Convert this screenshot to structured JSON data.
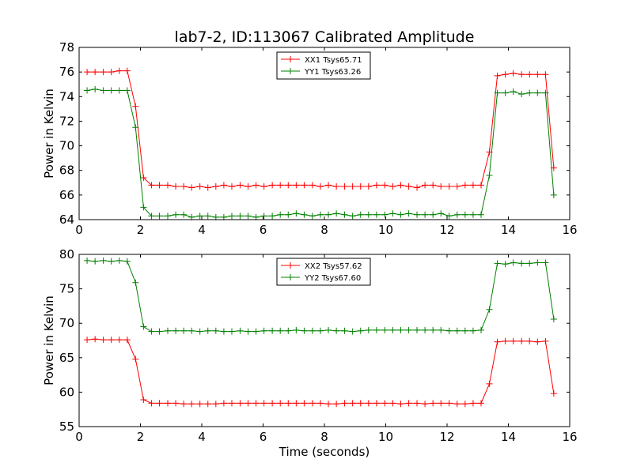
{
  "title": "lab7-2, ID:113067 Calibrated Amplitude",
  "colors": {
    "red": "#ff0000",
    "green": "#008000"
  },
  "chart_data": [
    {
      "type": "line",
      "ylabel": "Power in Kelvin",
      "xlabel": "",
      "xlim": [
        0,
        16
      ],
      "ylim": [
        64,
        78
      ],
      "xticks": [
        0,
        2,
        4,
        6,
        8,
        10,
        12,
        14,
        16
      ],
      "yticks": [
        64,
        66,
        68,
        70,
        72,
        74,
        76,
        78
      ],
      "legend_position": "top-center",
      "x": [
        0.26,
        0.52,
        0.79,
        1.05,
        1.31,
        1.57,
        1.84,
        2.1,
        2.36,
        2.62,
        2.89,
        3.15,
        3.41,
        3.67,
        3.94,
        4.2,
        4.46,
        4.72,
        4.98,
        5.25,
        5.51,
        5.77,
        6.03,
        6.3,
        6.56,
        6.82,
        7.08,
        7.34,
        7.61,
        7.87,
        8.13,
        8.39,
        8.66,
        8.92,
        9.18,
        9.44,
        9.7,
        9.97,
        10.23,
        10.49,
        10.75,
        11.02,
        11.28,
        11.54,
        11.8,
        12.07,
        12.33,
        12.59,
        12.85,
        13.11,
        13.38,
        13.64,
        13.9,
        14.16,
        14.43,
        14.69,
        14.95,
        15.21,
        15.48
      ],
      "series": [
        {
          "name": "XX1 Tsys65.71",
          "color": "#ff0000",
          "values": [
            76.0,
            76.0,
            76.0,
            76.0,
            76.1,
            76.1,
            73.2,
            67.4,
            66.8,
            66.8,
            66.8,
            66.7,
            66.7,
            66.6,
            66.7,
            66.6,
            66.7,
            66.8,
            66.7,
            66.8,
            66.7,
            66.8,
            66.7,
            66.8,
            66.8,
            66.8,
            66.8,
            66.8,
            66.8,
            66.7,
            66.8,
            66.7,
            66.7,
            66.7,
            66.7,
            66.7,
            66.8,
            66.8,
            66.7,
            66.8,
            66.7,
            66.6,
            66.8,
            66.8,
            66.7,
            66.7,
            66.7,
            66.8,
            66.8,
            66.8,
            69.5,
            75.7,
            75.8,
            75.9,
            75.8,
            75.8,
            75.8,
            75.8,
            68.2
          ]
        },
        {
          "name": "YY1 Tsys63.26",
          "color": "#008000",
          "values": [
            74.5,
            74.6,
            74.5,
            74.5,
            74.5,
            74.5,
            71.5,
            65.0,
            64.3,
            64.3,
            64.3,
            64.4,
            64.4,
            64.2,
            64.3,
            64.3,
            64.2,
            64.2,
            64.3,
            64.3,
            64.3,
            64.2,
            64.3,
            64.3,
            64.4,
            64.4,
            64.5,
            64.4,
            64.3,
            64.4,
            64.4,
            64.5,
            64.4,
            64.3,
            64.4,
            64.4,
            64.4,
            64.4,
            64.5,
            64.4,
            64.5,
            64.4,
            64.4,
            64.4,
            64.5,
            64.3,
            64.4,
            64.4,
            64.4,
            64.4,
            67.6,
            74.3,
            74.3,
            74.4,
            74.2,
            74.3,
            74.3,
            74.3,
            66.0
          ]
        }
      ]
    },
    {
      "type": "line",
      "ylabel": "Power in Kelvin",
      "xlabel": "Time (seconds)",
      "xlim": [
        0,
        16
      ],
      "ylim": [
        55,
        80
      ],
      "xticks": [
        0,
        2,
        4,
        6,
        8,
        10,
        12,
        14,
        16
      ],
      "yticks": [
        55,
        60,
        65,
        70,
        75,
        80
      ],
      "legend_position": "top-center",
      "x": [
        0.26,
        0.52,
        0.79,
        1.05,
        1.31,
        1.57,
        1.84,
        2.1,
        2.36,
        2.62,
        2.89,
        3.15,
        3.41,
        3.67,
        3.94,
        4.2,
        4.46,
        4.72,
        4.98,
        5.25,
        5.51,
        5.77,
        6.03,
        6.3,
        6.56,
        6.82,
        7.08,
        7.34,
        7.61,
        7.87,
        8.13,
        8.39,
        8.66,
        8.92,
        9.18,
        9.44,
        9.7,
        9.97,
        10.23,
        10.49,
        10.75,
        11.02,
        11.28,
        11.54,
        11.8,
        12.07,
        12.33,
        12.59,
        12.85,
        13.11,
        13.38,
        13.64,
        13.9,
        14.16,
        14.43,
        14.69,
        14.95,
        15.21,
        15.48
      ],
      "series": [
        {
          "name": "XX2 Tsys57.62",
          "color": "#ff0000",
          "values": [
            67.6,
            67.7,
            67.6,
            67.6,
            67.6,
            67.6,
            64.8,
            58.9,
            58.4,
            58.4,
            58.4,
            58.4,
            58.3,
            58.3,
            58.3,
            58.3,
            58.3,
            58.4,
            58.4,
            58.4,
            58.4,
            58.4,
            58.4,
            58.4,
            58.4,
            58.4,
            58.4,
            58.4,
            58.4,
            58.4,
            58.3,
            58.3,
            58.4,
            58.4,
            58.4,
            58.4,
            58.4,
            58.4,
            58.4,
            58.3,
            58.4,
            58.4,
            58.3,
            58.4,
            58.4,
            58.4,
            58.3,
            58.3,
            58.4,
            58.4,
            61.2,
            67.3,
            67.4,
            67.4,
            67.4,
            67.4,
            67.3,
            67.4,
            59.8
          ]
        },
        {
          "name": "YY2 Tsys67.60",
          "color": "#008000",
          "values": [
            79.1,
            79.0,
            79.1,
            79.0,
            79.1,
            79.0,
            75.9,
            69.5,
            68.8,
            68.8,
            68.9,
            68.9,
            68.9,
            68.9,
            68.8,
            68.9,
            68.9,
            68.8,
            68.8,
            68.9,
            68.8,
            68.8,
            68.9,
            68.9,
            68.9,
            68.9,
            69.0,
            68.9,
            68.9,
            68.9,
            69.0,
            68.9,
            68.9,
            68.8,
            68.9,
            69.0,
            69.0,
            69.0,
            69.0,
            69.0,
            69.0,
            69.0,
            69.0,
            69.0,
            69.0,
            68.9,
            68.9,
            68.9,
            68.9,
            69.0,
            72.0,
            78.7,
            78.6,
            78.8,
            78.7,
            78.7,
            78.8,
            78.8,
            70.6
          ]
        }
      ]
    }
  ]
}
